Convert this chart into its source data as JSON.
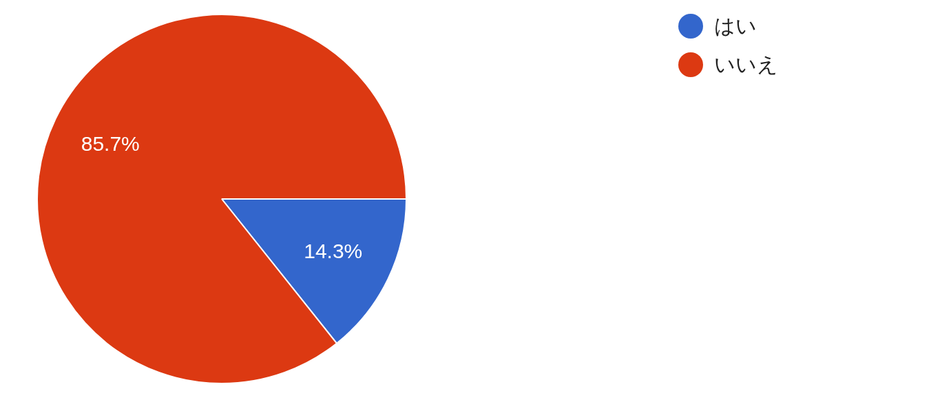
{
  "chart_data": {
    "type": "pie",
    "categories": [
      "はい",
      "いいえ"
    ],
    "values": [
      14.3,
      85.7
    ],
    "colors": [
      "#3366cc",
      "#dc3912"
    ],
    "value_labels": [
      "14.3%",
      "85.7%"
    ],
    "legend": "top right"
  }
}
